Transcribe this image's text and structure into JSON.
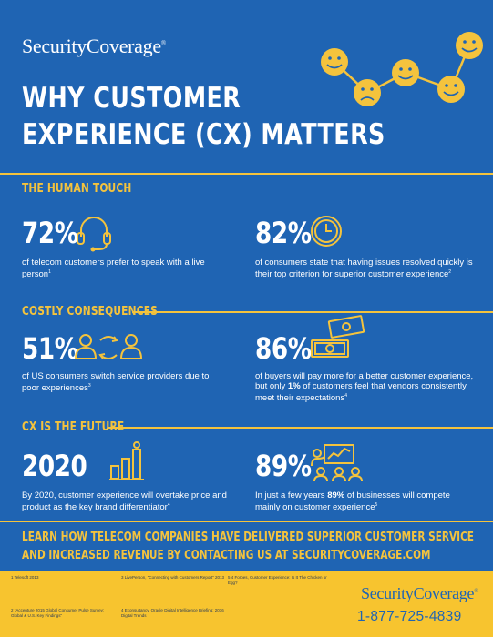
{
  "brand": {
    "name": "SecurityCoverage",
    "mark": "®"
  },
  "title": {
    "line1": "WHY CUSTOMER",
    "line2": "EXPERIENCE (CX) MATTERS"
  },
  "sections": {
    "human": {
      "heading": "THE HUMAN TOUCH",
      "left": {
        "value": "72%",
        "text": "of telecom customers prefer to speak with a live person",
        "note": "1",
        "icon": "headset-icon"
      },
      "right": {
        "value": "82%",
        "text": "of consumers state that having issues resolved quickly is their top criterion for superior customer experience",
        "note": "2",
        "icon": "clock-icon"
      }
    },
    "costly": {
      "heading": "COSTLY CONSEQUENCES",
      "left": {
        "value": "51%",
        "text": "of US consumers switch service providers due to poor experiences",
        "note": "3",
        "icon": "switching-people-icon"
      },
      "right": {
        "value": "86%",
        "text_pre": "of buyers will pay more for a better customer experience, but only ",
        "text_bold": "1%",
        "text_post": " of customers feel that vendors consistently meet their expectations",
        "note": "4",
        "icon": "money-bills-icon"
      }
    },
    "future": {
      "heading": "CX IS THE FUTURE",
      "left": {
        "value": "2020",
        "text": "By 2020, customer experience will overtake price and product as the key brand differentiator",
        "note": "4",
        "icon": "growth-bars-icon"
      },
      "right": {
        "value": "89%",
        "text_pre": "In just a few years ",
        "text_bold": "89%",
        "text_post": " of businesses will compete mainly on customer experience",
        "note": "5",
        "icon": "presentation-icon"
      }
    }
  },
  "cta": "LEARN HOW TELECOM COMPANIES HAVE DELIVERED SUPERIOR CUSTOMER SERVICE AND INCREASED REVENUE BY CONTACTING US AT SECURITYCOVERAGE.COM",
  "footnotes": {
    "f1": "1 Telesoft 2013",
    "f2": "2 \"Accenture 2015 Global Consumer Pulse Survey: Global & U.S. Key Findings\"",
    "f3": "3 LivePerson, \"Connecting with Customers Report\" 2013",
    "f4": "4 Econsultancy, Oracle Digital Intelligence Briefing: 2016 Digital Trends",
    "f5": "5 4 Forbes, Customer Experience: Is It The Chicken or Egg?"
  },
  "phone": "1-877-725-4839",
  "colors": {
    "background": "#1f64b3",
    "accent": "#f4c33d",
    "footer": "#f7c42f",
    "text": "#ffffff"
  }
}
